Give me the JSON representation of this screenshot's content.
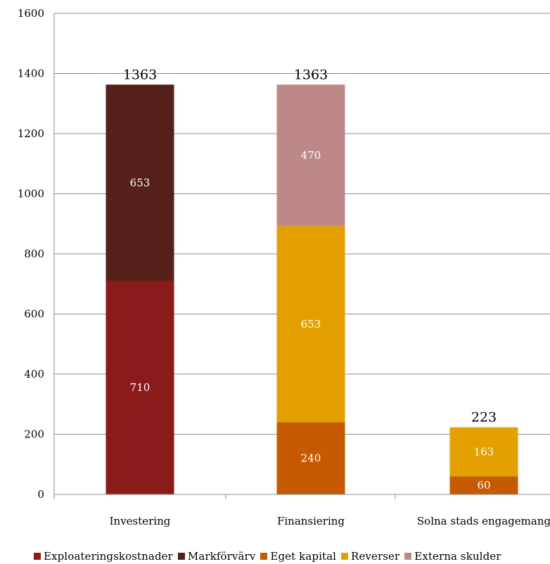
{
  "chart_data": {
    "type": "bar",
    "stacked": true,
    "categories": [
      "Investering",
      "Finansiering",
      "Solna stads engagemang"
    ],
    "ylim": [
      0,
      1600
    ],
    "yticks": [
      0,
      200,
      400,
      600,
      800,
      1000,
      1200,
      1400,
      1600
    ],
    "grid": true,
    "legend_position": "bottom",
    "series": [
      {
        "name": "Exploateringskostnader",
        "color": "#8b1a1a",
        "values": [
          710,
          0,
          0
        ]
      },
      {
        "name": "Markförvärv",
        "color": "#55201a",
        "values": [
          653,
          0,
          0
        ]
      },
      {
        "name": "Eget kapital",
        "color": "#c55a00",
        "values": [
          0,
          240,
          60
        ]
      },
      {
        "name": "Reverser",
        "color": "#e3a000",
        "values": [
          0,
          653,
          163
        ]
      },
      {
        "name": "Externa skulder",
        "color": "#bd8888",
        "values": [
          0,
          470,
          0
        ]
      }
    ],
    "totals": [
      1363,
      1363,
      223
    ]
  }
}
